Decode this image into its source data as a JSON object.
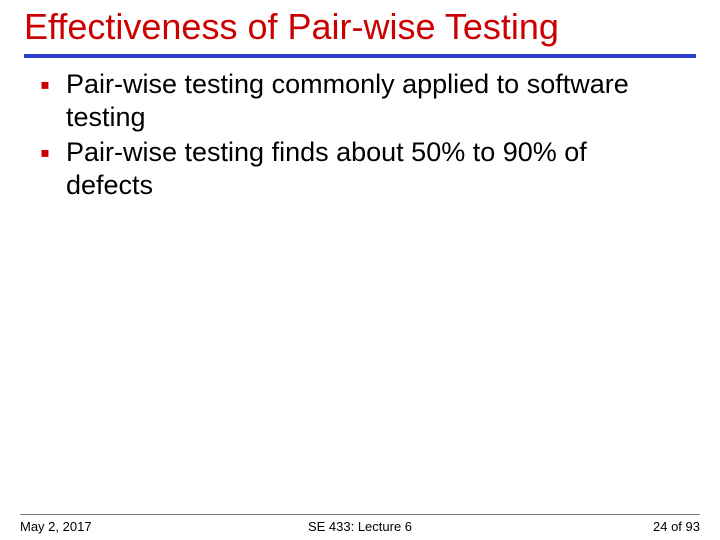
{
  "title": {
    "text": "Effectiveness of Pair-wise Testing",
    "color": "#cc0000",
    "fontsize": 36
  },
  "rule": {
    "color": "#2a3fcf",
    "height": 4
  },
  "bullets": {
    "marker_color": "#cc0000",
    "marker_fontsize": 28,
    "text_color": "#000000",
    "text_fontsize": 27,
    "line_height": 33,
    "items": [
      "Pair-wise testing commonly applied to software testing",
      "Pair-wise testing finds about 50% to 90% of defects"
    ]
  },
  "footer": {
    "left": "May 2, 2017",
    "center": "SE 433: Lecture 6",
    "right": "24 of 93",
    "fontsize": 13,
    "color": "#000000"
  },
  "background_color": "#ffffff"
}
